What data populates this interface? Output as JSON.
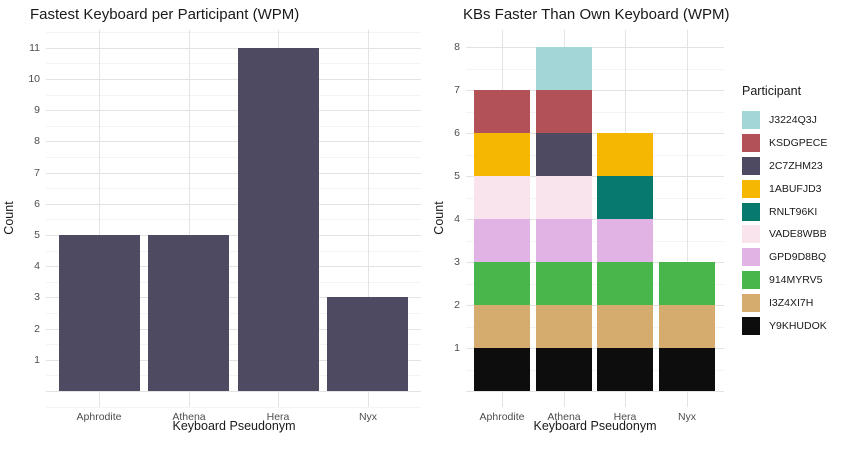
{
  "chart_data": [
    {
      "type": "bar",
      "title": "Fastest Keyboard per Participant (WPM)",
      "xlabel": "Keyboard Pseudonym",
      "ylabel": "Count",
      "categories": [
        "Aphrodite",
        "Athena",
        "Hera",
        "Nyx"
      ],
      "values": [
        5,
        5,
        11,
        3
      ],
      "bar_color": "#4e4a62",
      "y_ticks": [
        1,
        2,
        3,
        4,
        5,
        6,
        7,
        8,
        9,
        10,
        11
      ],
      "ylim": [
        0,
        11.55
      ],
      "grid": "major and minor horizontal, major vertical at categories",
      "legend_position": "none"
    },
    {
      "type": "stacked-bar",
      "title": "KBs Faster Than Own Keyboard (WPM)",
      "xlabel": "Keyboard Pseudonym",
      "ylabel": "Count",
      "categories": [
        "Aphrodite",
        "Athena",
        "Hera",
        "Nyx"
      ],
      "series_note": "listed bottom-to-top of each stack; one unit per participant",
      "series": [
        {
          "name": "Y9KHUDOK",
          "values": [
            1,
            1,
            1,
            1
          ]
        },
        {
          "name": "I3Z4XI7H",
          "values": [
            1,
            1,
            1,
            1
          ]
        },
        {
          "name": "914MYRV5",
          "values": [
            1,
            1,
            1,
            1
          ]
        },
        {
          "name": "GPD9D8BQ",
          "values": [
            1,
            1,
            1,
            0
          ]
        },
        {
          "name": "VADE8WBB",
          "values": [
            1,
            1,
            0,
            0
          ]
        },
        {
          "name": "RNLT96KI",
          "values": [
            0,
            0,
            1,
            0
          ]
        },
        {
          "name": "1ABUFJD3",
          "values": [
            1,
            0,
            1,
            0
          ]
        },
        {
          "name": "2C7ZHM23",
          "values": [
            0,
            1,
            0,
            0
          ]
        },
        {
          "name": "KSDGPECE",
          "values": [
            1,
            1,
            0,
            0
          ]
        },
        {
          "name": "J3224Q3J",
          "values": [
            0,
            1,
            0,
            0
          ]
        }
      ],
      "totals": [
        7,
        8,
        6,
        3
      ],
      "y_ticks": [
        1,
        2,
        3,
        4,
        5,
        6,
        7,
        8
      ],
      "ylim": [
        0,
        8.4
      ],
      "grid": "major and minor horizontal, major vertical at categories",
      "legend_position": "right",
      "legend": {
        "title": "Participant",
        "items": [
          {
            "label": "J3224Q3J",
            "color": "#a3d6d6"
          },
          {
            "label": "KSDGPECE",
            "color": "#b35158"
          },
          {
            "label": "2C7ZHM23",
            "color": "#4e4a62"
          },
          {
            "label": "1ABUFJD3",
            "color": "#f5b701"
          },
          {
            "label": "RNLT96KI",
            "color": "#087a6d"
          },
          {
            "label": "VADE8WBB",
            "color": "#f9e4ee"
          },
          {
            "label": "GPD9D8BQ",
            "color": "#e0b3e4"
          },
          {
            "label": "914MYRV5",
            "color": "#49b64b"
          },
          {
            "label": "I3Z4XI7H",
            "color": "#d5ab6e"
          },
          {
            "label": "Y9KHUDOK",
            "color": "#0e0d0d"
          }
        ]
      }
    }
  ],
  "colors": {
    "background": "#ffffff",
    "grid_major": "#e3e3e3",
    "grid_minor": "#f4f4f4",
    "tick_label": "#4d4d4d",
    "text": "#1a1a1a"
  }
}
